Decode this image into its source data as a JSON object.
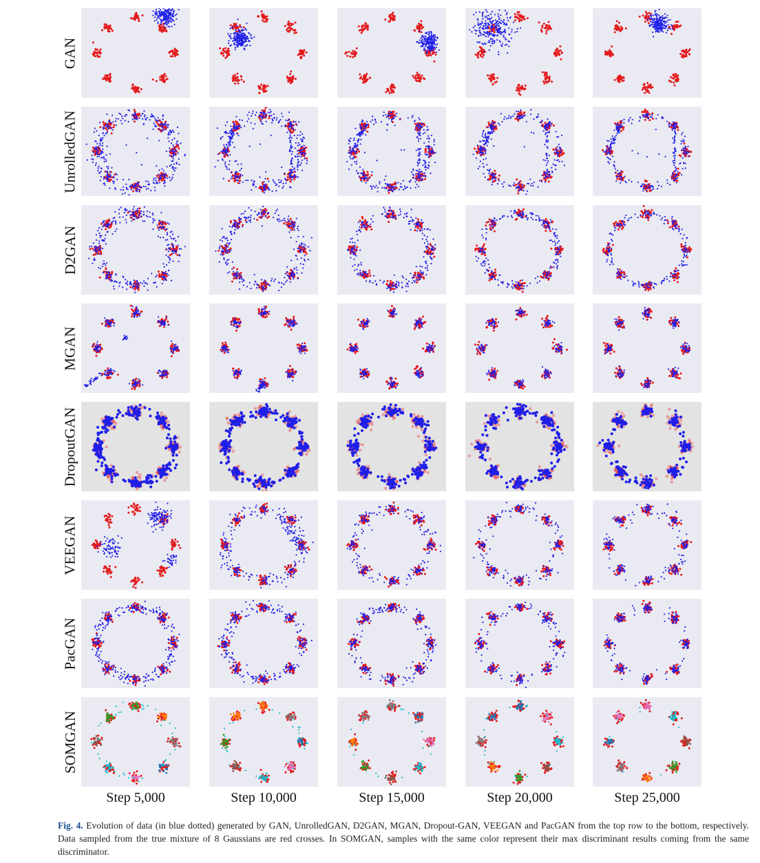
{
  "figure": {
    "rows": [
      "GAN",
      "UnrolledGAN",
      "D2GAN",
      "MGAN",
      "DropoutGAN",
      "VEEGAN",
      "PacGAN",
      "SOMGAN"
    ],
    "columns": [
      "Step 5,000",
      "Step 10,000",
      "Step 15,000",
      "Step 20,000",
      "Step 25,000"
    ],
    "colors": {
      "panel_bg": "#eaeaf2",
      "panel_bg_dropout": "#e3e3e3",
      "real": "#e41a1c",
      "generated": "#1f1fe8",
      "somgan_palette": [
        "#2ca02c",
        "#ff7f0e",
        "#7f7f7f",
        "#1f77b4",
        "#e377c2",
        "#17becf",
        "#8c564b"
      ]
    }
  },
  "caption": {
    "label": "Fig. 4.",
    "text": "Evolution of data (in blue dotted) generated by GAN, UnrolledGAN, D2GAN, MGAN, Dropout-GAN, VEEGAN and PacGAN from the top row to the bottom, respectively. Data sampled from the true mixture of 8 Gaussians are red crosses. In SOMGAN, samples with the same color represent their max discriminant results coming from the same discriminator."
  }
}
